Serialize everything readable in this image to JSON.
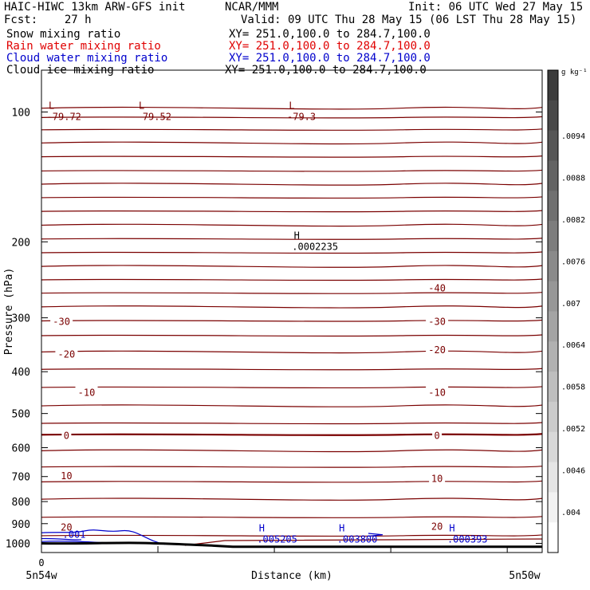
{
  "header": {
    "line1_left": "HAIC-HIWC 13km ARW-GFS init",
    "line1_mid": "NCAR/MMM",
    "line1_right": "Init: 06 UTC Wed 27 May 15",
    "line2_left": "Fcst:    27 h",
    "line2_right": "Valid: 09 UTC Thu 28 May 15 (06 LST Thu 28 May 15)"
  },
  "fields": [
    {
      "name": "Snow mixing ratio",
      "xy": "XY= 251.0,100.0 to 284.7,100.0",
      "color": "#000000"
    },
    {
      "name": "Rain water mixing ratio",
      "xy": "XY= 251.0,100.0 to 284.7,100.0",
      "color": "#e00000"
    },
    {
      "name": "Cloud water mixing ratio",
      "xy": "XY= 251.0,100.0 to 284.7,100.0",
      "color": "#0000cc"
    },
    {
      "name": "Cloud ice mixing ratio",
      "xy": "XY= 251.0,100.0 to 284.7,100.0",
      "color": "#000000"
    }
  ],
  "chart_data": {
    "type": "cross-section",
    "xlabel": "Distance (km)",
    "ylabel": "Pressure (hPa)",
    "x_tick_labels": [
      "0",
      "5n54w",
      "5n50w"
    ],
    "y_ticks": [
      100,
      200,
      300,
      400,
      500,
      600,
      700,
      800,
      900,
      1000
    ],
    "ylim": [
      1050,
      80
    ],
    "y_scale": "log",
    "colorbar": {
      "unit": "g kg⁻¹",
      "ticks": [
        ".004",
        ".0046",
        ".0052",
        ".0058",
        ".0064",
        ".007",
        ".0076",
        ".0082",
        ".0088",
        ".0094"
      ]
    },
    "temperature_contour_color": "#7a0000",
    "temperature_labels": [
      {
        "text": "-40",
        "x": 0.79,
        "p": 255
      },
      {
        "text": "-30",
        "x": 0.04,
        "p": 305
      },
      {
        "text": "-30",
        "x": 0.79,
        "p": 305
      },
      {
        "text": "-20",
        "x": 0.05,
        "p": 363
      },
      {
        "text": "-20",
        "x": 0.79,
        "p": 355
      },
      {
        "text": "-10",
        "x": 0.09,
        "p": 445
      },
      {
        "text": "-10",
        "x": 0.79,
        "p": 445
      },
      {
        "text": "0",
        "x": 0.05,
        "p": 560
      },
      {
        "text": "0",
        "x": 0.79,
        "p": 560
      },
      {
        "text": "10",
        "x": 0.05,
        "p": 695
      },
      {
        "text": "10",
        "x": 0.79,
        "p": 705
      },
      {
        "text": "20",
        "x": 0.05,
        "p": 915
      },
      {
        "text": "20",
        "x": 0.79,
        "p": 910
      }
    ],
    "extrema": [
      {
        "mark": "L",
        "value": "-79.72",
        "x": 0.02,
        "p": 100,
        "color": "#7a0000"
      },
      {
        "mark": "L",
        "value": "-79.52",
        "x": 0.2,
        "p": 100,
        "color": "#7a0000"
      },
      {
        "mark": "L",
        "value": "-79.3",
        "x": 0.5,
        "p": 100,
        "color": "#7a0000"
      },
      {
        "mark": "H",
        "value": ".0002235",
        "x": 0.51,
        "p": 200,
        "color": "#000000"
      },
      {
        "mark": "H",
        "value": ".005205",
        "x": 0.44,
        "p": 955,
        "color": "#0000cc"
      },
      {
        "mark": "H",
        "value": ".003800",
        "x": 0.6,
        "p": 955,
        "color": "#0000cc"
      },
      {
        "mark": "H",
        "value": ".000393",
        "x": 0.82,
        "p": 955,
        "color": "#0000cc"
      }
    ],
    "cloud_water_label": {
      "text": ".001",
      "x": 0.02,
      "p": 955
    }
  }
}
